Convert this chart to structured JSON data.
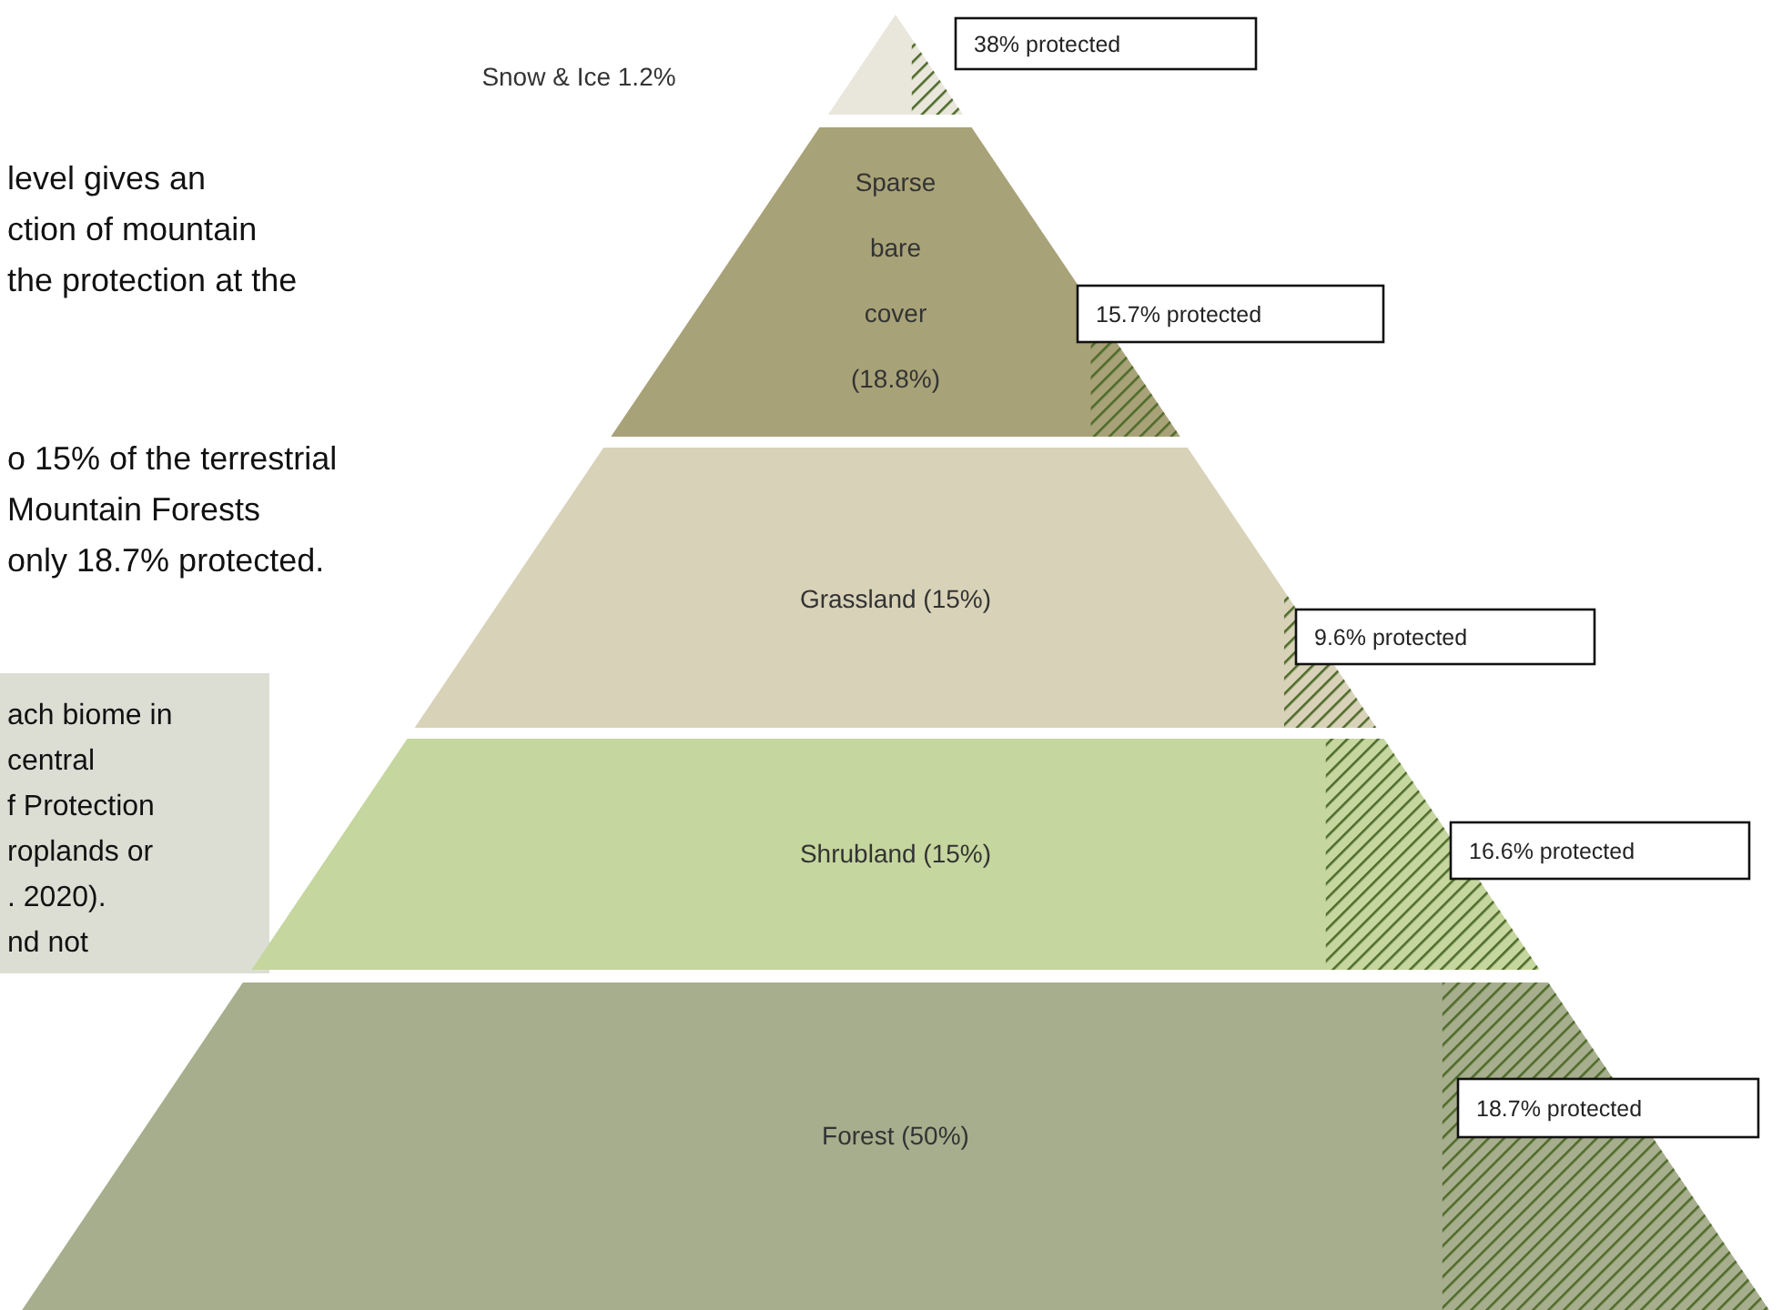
{
  "chart_data": {
    "type": "other",
    "categories": [
      "Snow & Ice 1.2%",
      "Sparse bare cover (18.8%)",
      "Grassland (15%)",
      "Shrubland (15%)",
      "Forest (50%)"
    ],
    "colors": [
      "#e9e6dc",
      "#a8a278",
      "#d8d2b8",
      "#c5d69e",
      "#a7ae8d"
    ],
    "series": [
      {
        "values": [
          38,
          15.7,
          9.6,
          16.6,
          18.7
        ],
        "value_labels": [
          "38% protected",
          "15.7% protected",
          "9.6% protected",
          "16.6% protected",
          "18.7% protected"
        ]
      }
    ],
    "annotations": [
      "level gives an\nction of mountain\nthe protection at the",
      "o 15% of the terrestrial\nMountain Forests\nonly 18.7% protected.",
      "ach biome in\ncentral\nf Protection\nroplands or\n. 2020).\nnd not"
    ]
  }
}
